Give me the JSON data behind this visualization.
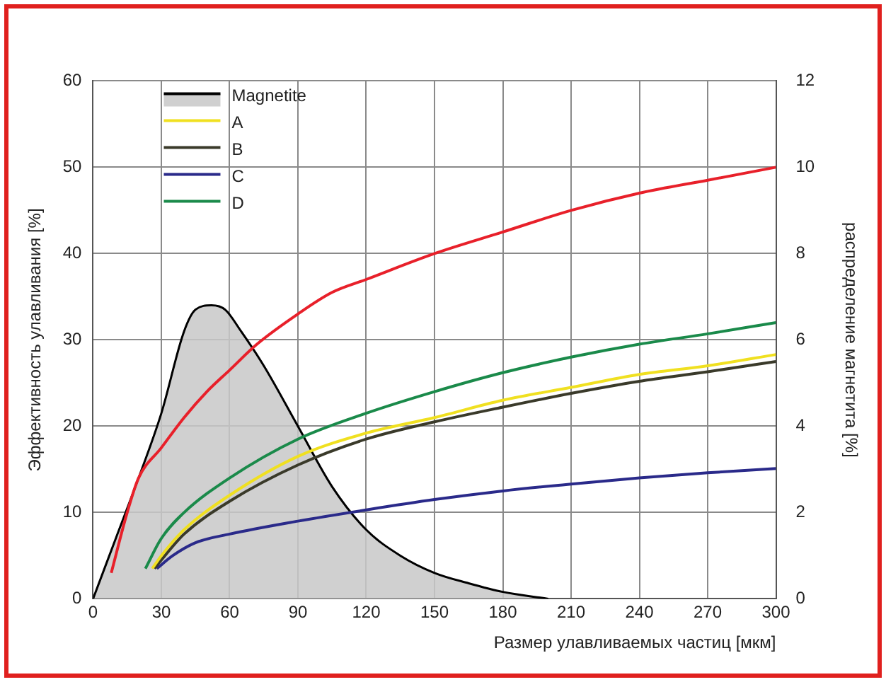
{
  "chart_data": {
    "type": "line",
    "xlabel": "Размер улавливаемых частиц [мкм]",
    "ylabel": "Эффективность улавливания [%]",
    "y2label": "распределение магнетита [%]",
    "xlim": [
      0,
      300
    ],
    "xticks": [
      0,
      30,
      60,
      90,
      120,
      150,
      180,
      210,
      240,
      270,
      300
    ],
    "ylim": [
      0,
      60
    ],
    "yticks": [
      0,
      10,
      20,
      30,
      40,
      50,
      60
    ],
    "y2lim": [
      0,
      12
    ],
    "y2ticks": [
      0,
      2,
      4,
      6,
      8,
      10,
      12
    ],
    "grid": true,
    "legend": "top left",
    "marker": "none",
    "line_style": "solid",
    "series": [
      {
        "name": "Magnetite",
        "type": "area",
        "axis": "y2",
        "color": "#000000",
        "x": [
          0,
          10,
          20,
          30,
          40,
          45,
          52,
          58,
          65,
          75,
          90,
          105,
          120,
          135,
          150,
          165,
          180,
          200
        ],
        "values": [
          0,
          1.4,
          2.8,
          4.3,
          6.2,
          6.7,
          6.8,
          6.7,
          6.2,
          5.4,
          4,
          2.6,
          1.6,
          1,
          0.6,
          0.36,
          0.16,
          0
        ]
      },
      {
        "color": "#e8202a",
        "x": [
          8,
          15,
          20,
          30,
          40,
          50,
          60,
          72,
          90,
          105,
          120,
          150,
          180,
          210,
          240,
          270,
          300
        ],
        "values": [
          3,
          10,
          14,
          17.5,
          21,
          24,
          26.5,
          29.5,
          33,
          35.5,
          37,
          40,
          42.5,
          45,
          47,
          48.5,
          50
        ]
      },
      {
        "name": "A",
        "color": "#f0e020",
        "x": [
          26,
          30,
          40,
          60,
          90,
          120,
          150,
          180,
          210,
          240,
          270,
          300
        ],
        "values": [
          3.5,
          5,
          8,
          12,
          16.5,
          19.2,
          21,
          23,
          24.5,
          26,
          27,
          28.3
        ]
      },
      {
        "name": "B",
        "color": "#3a3a2a",
        "x": [
          27,
          30,
          40,
          60,
          90,
          120,
          150,
          180,
          210,
          240,
          270,
          300
        ],
        "values": [
          3.5,
          4.5,
          7.5,
          11.3,
          15.5,
          18.5,
          20.5,
          22.2,
          23.8,
          25.2,
          26.3,
          27.5
        ]
      },
      {
        "name": "C",
        "color": "#2a2a8a",
        "x": [
          28,
          35,
          45,
          60,
          90,
          120,
          150,
          180,
          210,
          240,
          270,
          300
        ],
        "values": [
          3.5,
          5,
          6.5,
          7.5,
          9,
          10.3,
          11.5,
          12.5,
          13.3,
          14,
          14.6,
          15.1
        ]
      },
      {
        "name": "D",
        "color": "#1a8a4a",
        "x": [
          23,
          30,
          40,
          60,
          90,
          120,
          150,
          180,
          210,
          240,
          270,
          300
        ],
        "values": [
          3.5,
          7,
          10,
          14,
          18.5,
          21.5,
          24,
          26.2,
          28,
          29.5,
          30.7,
          32
        ]
      }
    ]
  }
}
